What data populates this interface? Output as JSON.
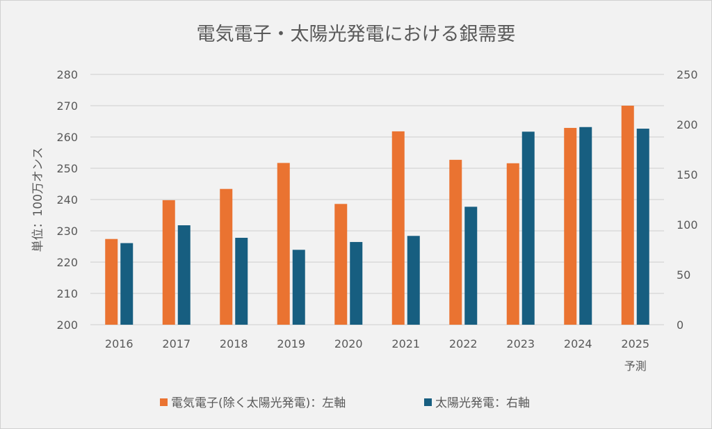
{
  "chart_data": {
    "type": "bar",
    "title": "電気電子・太陽光発電における銀需要",
    "categories": [
      "2016",
      "2017",
      "2018",
      "2019",
      "2020",
      "2021",
      "2022",
      "2023",
      "2024",
      "2025"
    ],
    "category_sublabels": {
      "2025": "予測"
    },
    "ylabel": "単位：100万オンス",
    "ylim": [
      200,
      280
    ],
    "yticks": [
      200,
      210,
      220,
      230,
      240,
      250,
      260,
      270,
      280
    ],
    "y2lim": [
      0,
      250
    ],
    "y2ticks": [
      0,
      50,
      100,
      150,
      200,
      250
    ],
    "grid": true,
    "legend_position": "bottom",
    "series": [
      {
        "name": "電気電子(除く太陽光発電)：左軸",
        "axis": "left",
        "color": "#ea7331",
        "values": [
          227.4,
          239.8,
          243.4,
          251.7,
          238.6,
          261.8,
          252.7,
          251.6,
          262.9,
          270.0
        ]
      },
      {
        "name": "太陽光発電：右軸",
        "axis": "right",
        "color": "#175e80",
        "values": [
          81.5,
          99.3,
          86.8,
          74.8,
          82.6,
          88.7,
          117.8,
          192.8,
          197.4,
          195.8
        ]
      }
    ]
  }
}
